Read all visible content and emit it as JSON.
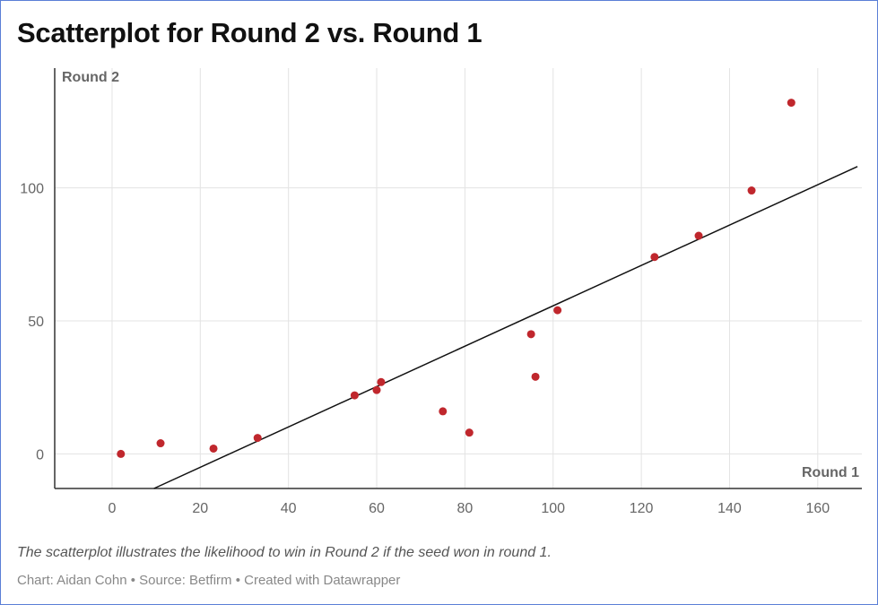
{
  "chart_data": {
    "type": "scatter",
    "title": "Scatterplot for Round 2 vs. Round 1",
    "xlabel": "Round 1",
    "ylabel": "Round 2",
    "xlim": [
      -13,
      170
    ],
    "ylim": [
      -13,
      145
    ],
    "x_ticks": [
      0,
      20,
      40,
      60,
      80,
      100,
      120,
      140,
      160
    ],
    "y_ticks": [
      0,
      50,
      100
    ],
    "grid": true,
    "points": [
      {
        "x": 2,
        "y": 0
      },
      {
        "x": 11,
        "y": 4
      },
      {
        "x": 23,
        "y": 2
      },
      {
        "x": 33,
        "y": 6
      },
      {
        "x": 55,
        "y": 22
      },
      {
        "x": 60,
        "y": 24
      },
      {
        "x": 61,
        "y": 27
      },
      {
        "x": 75,
        "y": 16
      },
      {
        "x": 81,
        "y": 8
      },
      {
        "x": 95,
        "y": 45
      },
      {
        "x": 96,
        "y": 29
      },
      {
        "x": 101,
        "y": 54
      },
      {
        "x": 123,
        "y": 74
      },
      {
        "x": 133,
        "y": 82
      },
      {
        "x": 145,
        "y": 99
      },
      {
        "x": 154,
        "y": 132
      }
    ],
    "trendline": {
      "x": [
        9.5,
        169
      ],
      "y": [
        -13,
        108
      ]
    },
    "point_color": "#c0272d",
    "line_color": "#111111"
  },
  "description": "The scatterplot illustrates the likelihood to win in Round 2 if the seed won in round 1.",
  "footer": "Chart: Aidan Cohn • Source: Betfirm • Created with Datawrapper",
  "colors": {
    "frame_border": "#5b7fd6",
    "grid": "#e3e3e3",
    "axis": "#333333"
  }
}
